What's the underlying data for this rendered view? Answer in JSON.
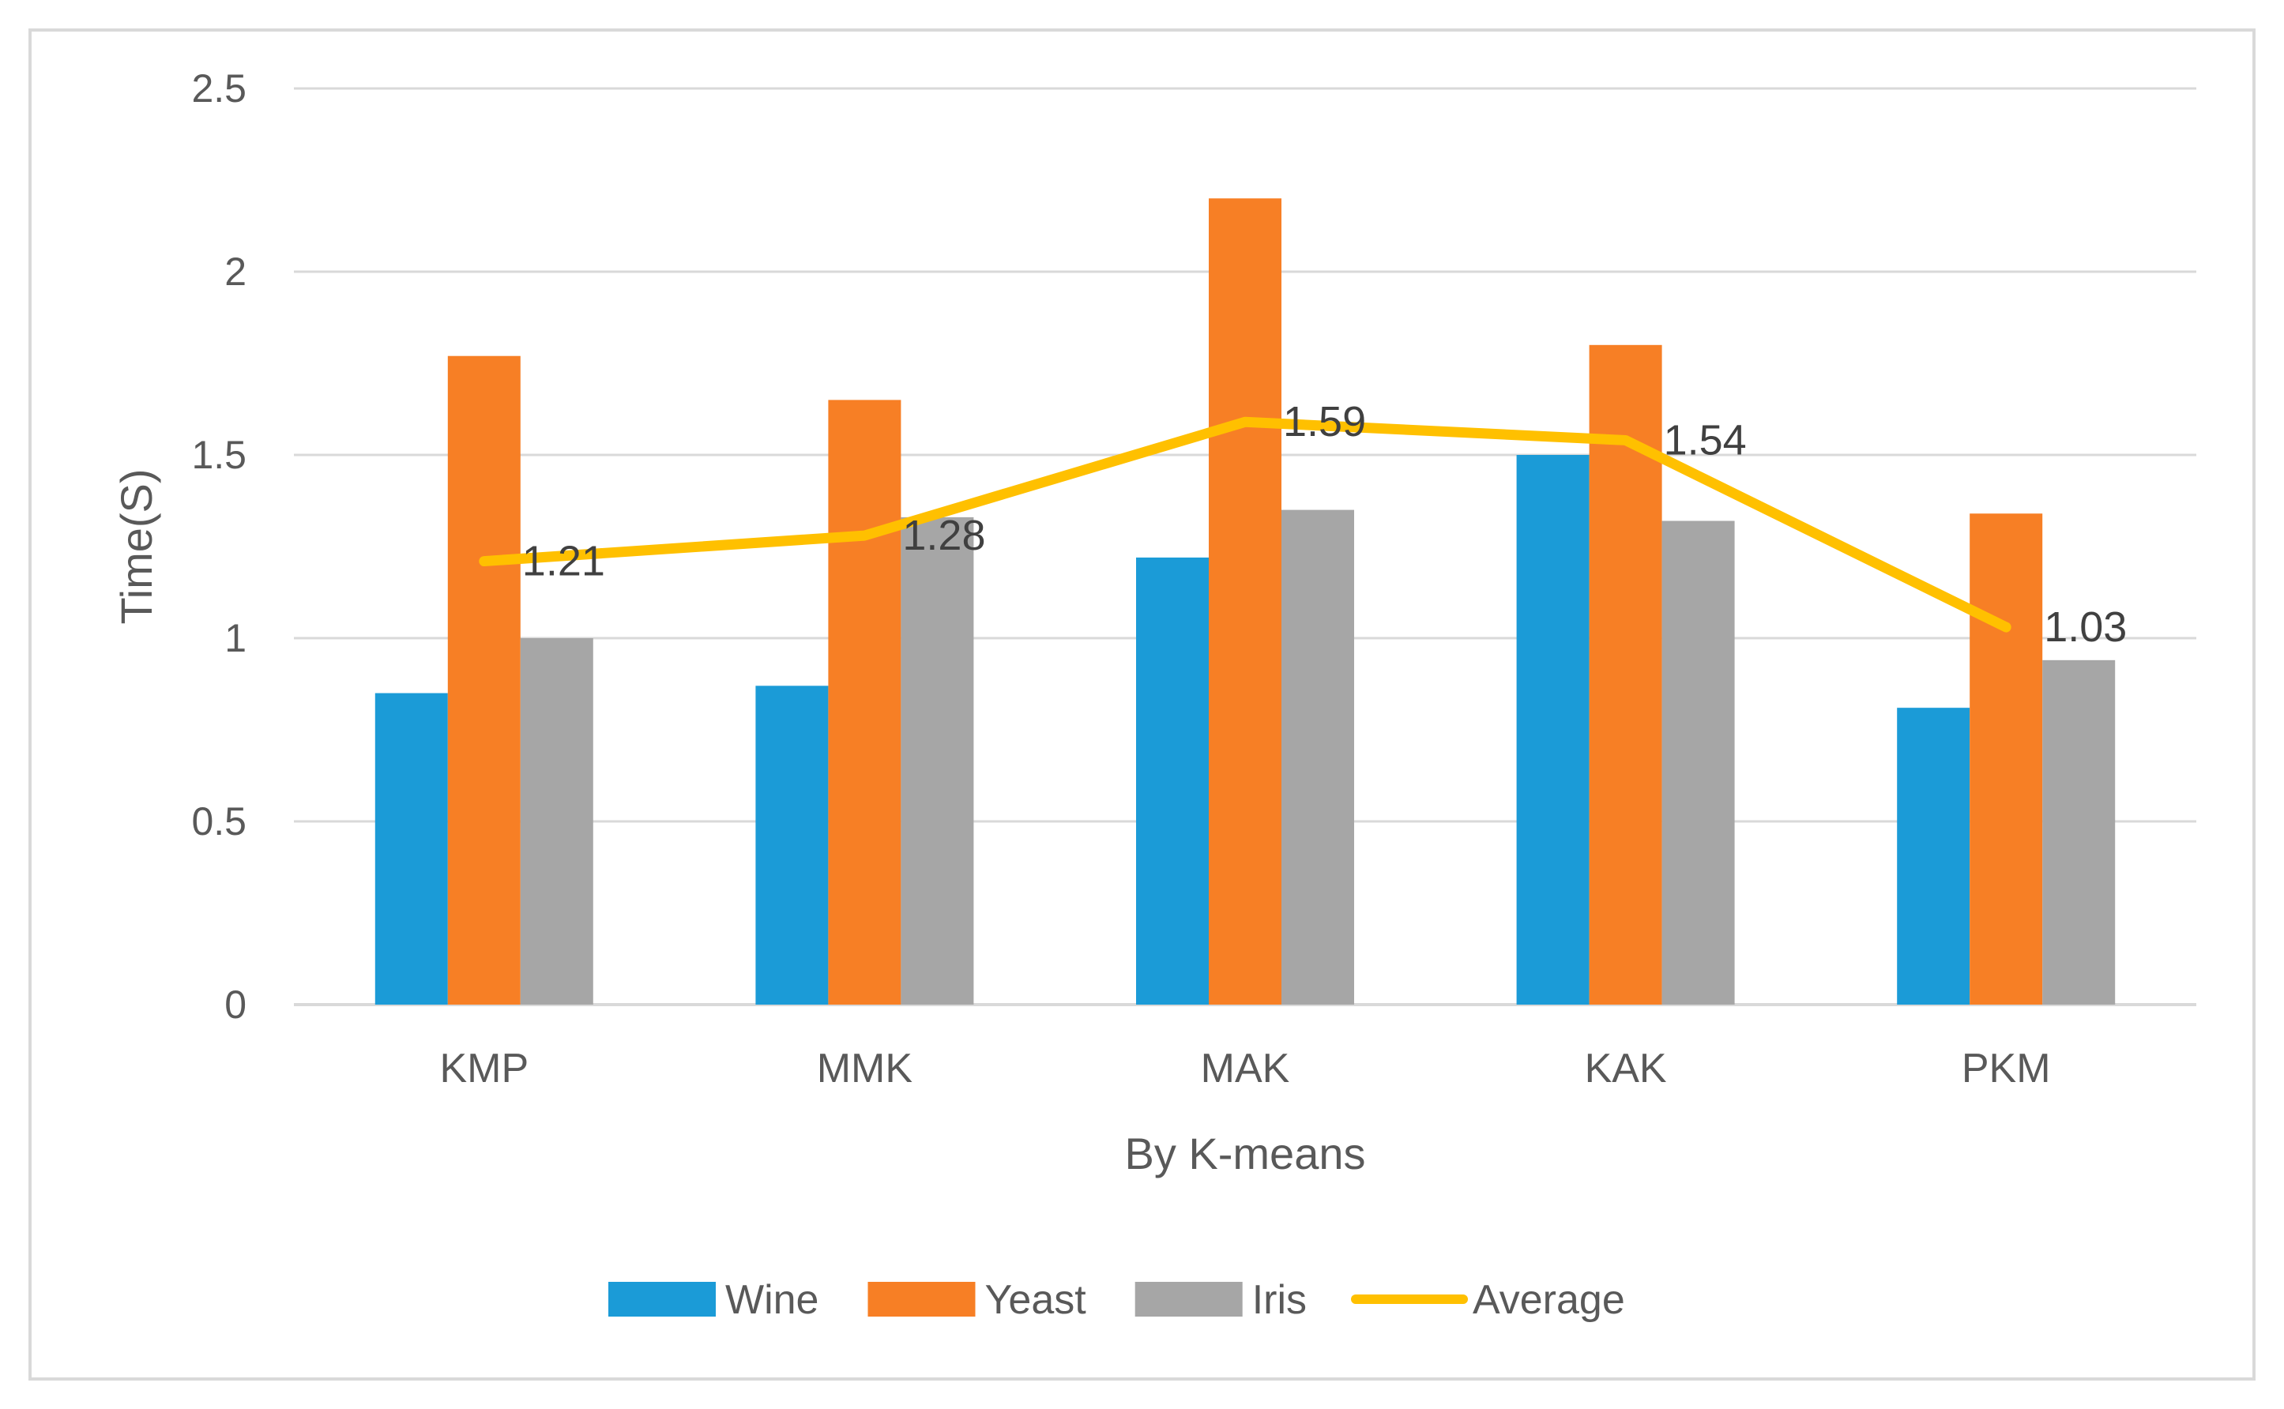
{
  "chart_data": {
    "type": "bar",
    "title": "",
    "xlabel": "By K-means",
    "ylabel": "Time(S)",
    "ylim": [
      0,
      2.5
    ],
    "yticks": [
      "0",
      "0.5",
      "1",
      "1.5",
      "2",
      "2.5"
    ],
    "grid": true,
    "legend_position": "bottom",
    "categories": [
      "KMP",
      "MMK",
      "MAK",
      "KAK",
      "PKM"
    ],
    "series": [
      {
        "name": "Wine",
        "type": "bar",
        "color": "#1b9bd7",
        "values": [
          0.85,
          0.87,
          1.22,
          1.5,
          0.81
        ]
      },
      {
        "name": "Yeast",
        "type": "bar",
        "color": "#f77f25",
        "values": [
          1.77,
          1.65,
          2.2,
          1.8,
          1.34
        ]
      },
      {
        "name": "Iris",
        "type": "bar",
        "color": "#a6a6a6",
        "values": [
          1.0,
          1.33,
          1.35,
          1.32,
          0.94
        ]
      },
      {
        "name": "Average",
        "type": "line",
        "color": "#ffc000",
        "values": [
          1.21,
          1.28,
          1.59,
          1.54,
          1.03
        ],
        "labels": [
          "1.21",
          "1.28",
          "1.59",
          "1.54",
          "1.03"
        ]
      }
    ]
  }
}
